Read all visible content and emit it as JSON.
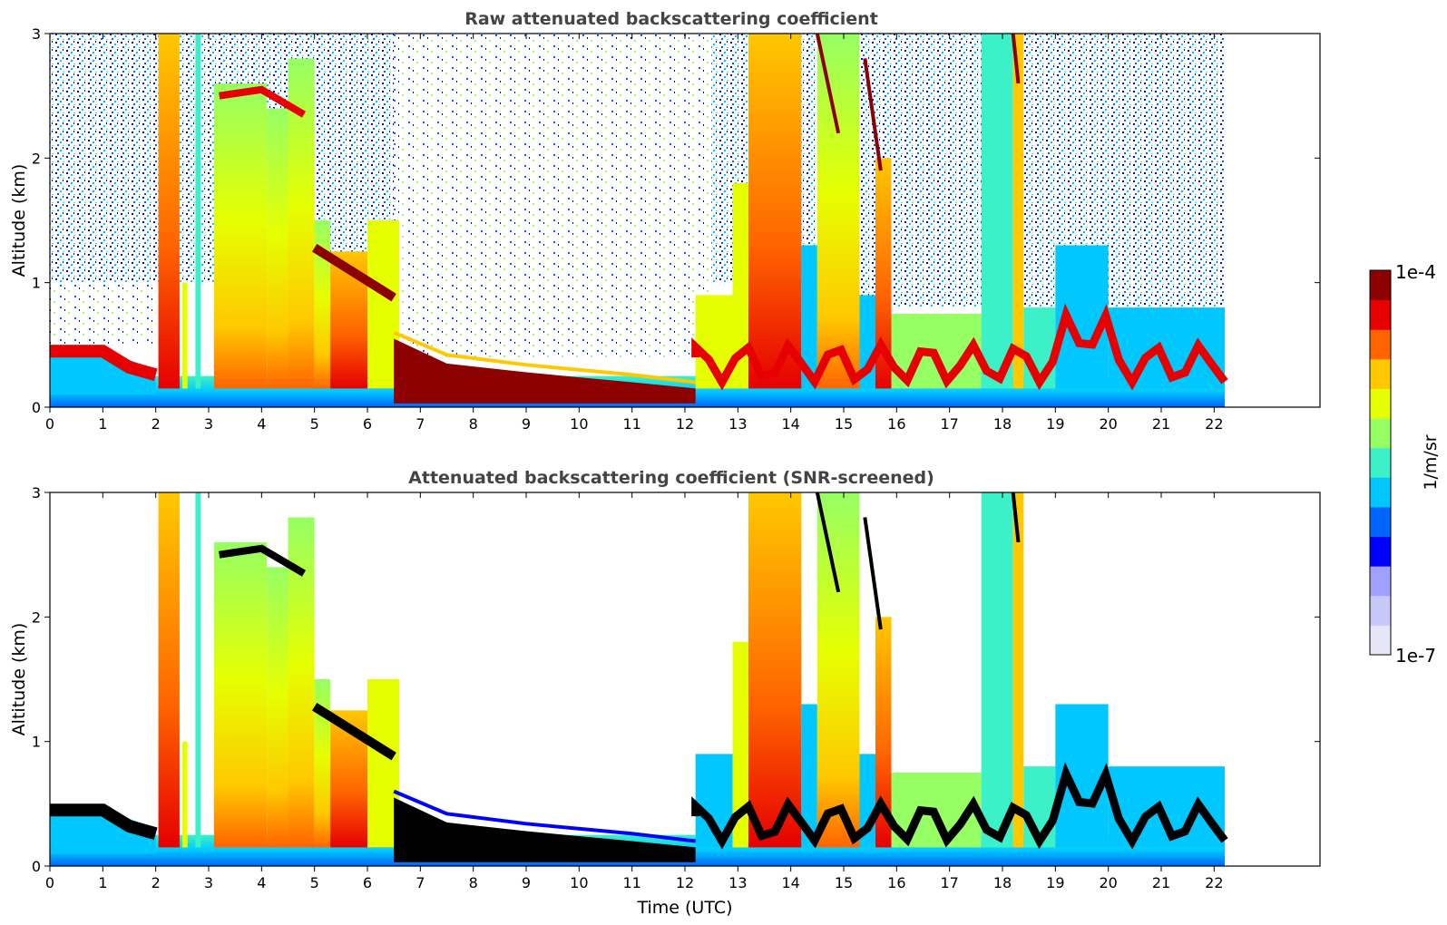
{
  "chart_data": [
    {
      "type": "heatmap",
      "title": "Raw attenuated backscattering coefficient",
      "xlabel": "",
      "ylabel": "Altitude (km)",
      "xlim": [
        0,
        24
      ],
      "ylim": [
        0,
        3
      ],
      "x_ticks": [
        "0",
        "1",
        "2",
        "3",
        "4",
        "5",
        "6",
        "7",
        "8",
        "9",
        "10",
        "11",
        "12",
        "13",
        "14",
        "15",
        "16",
        "17",
        "18",
        "19",
        "20",
        "21",
        "22"
      ],
      "y_ticks": [
        "0",
        "1",
        "2",
        "3"
      ],
      "data_extent_hours": [
        0,
        22.2
      ],
      "screened": false,
      "layers": [
        {
          "name": "boundary layer",
          "x": [
            0,
            1.5,
            2.0
          ],
          "top_km": [
            0.45,
            0.4,
            0.3
          ]
        },
        {
          "name": "precipitation/cloud columns",
          "x_ranges": [
            [
              2.05,
              2.45
            ],
            [
              3.1,
              5.0
            ],
            [
              13.0,
              14.2
            ],
            [
              14.5,
              15.3
            ]
          ],
          "top_km": 3.0
        },
        {
          "name": "descending cloud layer",
          "x": [
            5.0,
            6.5
          ],
          "top_km": [
            1.3,
            0.9
          ]
        },
        {
          "name": "fog / low cloud",
          "x": [
            7.5,
            12.2
          ],
          "top_km": [
            0.35,
            0.15
          ]
        },
        {
          "name": "broken low cloud",
          "x": [
            12.2,
            22.2
          ],
          "top_km": [
            0.8,
            1.3
          ]
        }
      ]
    },
    {
      "type": "heatmap",
      "title": "Attenuated backscattering coefficient (SNR-screened)",
      "xlabel": "Time (UTC)",
      "ylabel": "Altitude (km)",
      "xlim": [
        0,
        24
      ],
      "ylim": [
        0,
        3
      ],
      "x_ticks": [
        "0",
        "1",
        "2",
        "3",
        "4",
        "5",
        "6",
        "7",
        "8",
        "9",
        "10",
        "11",
        "12",
        "13",
        "14",
        "15",
        "16",
        "17",
        "18",
        "19",
        "20",
        "21",
        "22"
      ],
      "y_ticks": [
        "0",
        "1",
        "2",
        "3"
      ],
      "data_extent_hours": [
        0,
        22.2
      ],
      "screened": true
    }
  ],
  "colorbar": {
    "max_label": "1e-4",
    "min_label": "1e-7",
    "unit_label": "1/m/sr",
    "scale": "log",
    "range": [
      1e-07,
      0.0001
    ],
    "colors": [
      "#e6e6f8",
      "#c8c8f8",
      "#a0a0ff",
      "#0000ff",
      "#0064ff",
      "#00c8ff",
      "#3cf0c8",
      "#96ff64",
      "#e6ff00",
      "#ffc800",
      "#ff6400",
      "#e60000",
      "#8c0000"
    ]
  }
}
